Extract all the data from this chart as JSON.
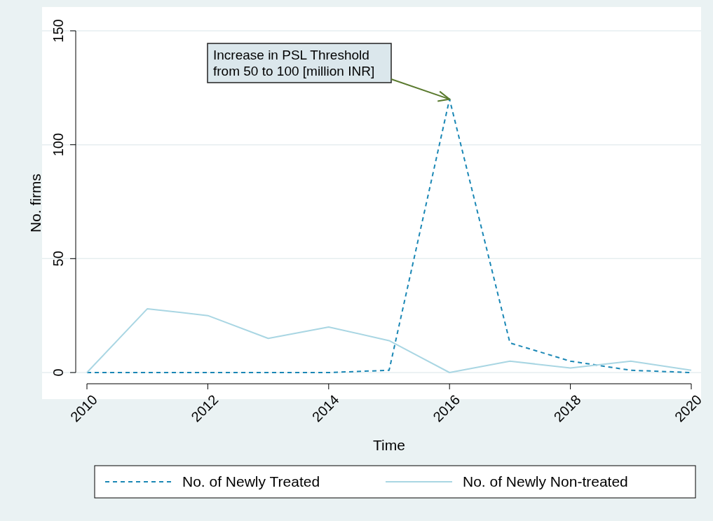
{
  "chart_data": {
    "type": "line",
    "xlabel": "Time",
    "ylabel": "No. firms",
    "x": [
      2010,
      2011,
      2012,
      2013,
      2014,
      2015,
      2016,
      2017,
      2018,
      2019,
      2020
    ],
    "series": [
      {
        "name": "No. of Newly Treated",
        "color": "#1a87b5",
        "line_style": "dashed",
        "values": [
          0,
          0,
          0,
          0,
          0,
          1,
          120,
          13,
          5,
          1,
          0
        ]
      },
      {
        "name": "No. of Newly Non-treated",
        "color": "#a9d6e3",
        "line_style": "solid",
        "values": [
          0,
          28,
          25,
          15,
          20,
          14,
          0,
          5,
          2,
          5,
          1
        ]
      }
    ],
    "xlim": [
      2010,
      2020
    ],
    "xticks": [
      2010,
      2012,
      2014,
      2016,
      2018,
      2020
    ],
    "ylim": [
      0,
      150
    ],
    "yticks": [
      0,
      50,
      100,
      150
    ],
    "grid": "y",
    "legend": "bottom",
    "annotations": [
      {
        "text": "Increase in PSL Threshold\nfrom 50 to 100 [million INR]",
        "x": 2016,
        "y": 120
      }
    ]
  }
}
